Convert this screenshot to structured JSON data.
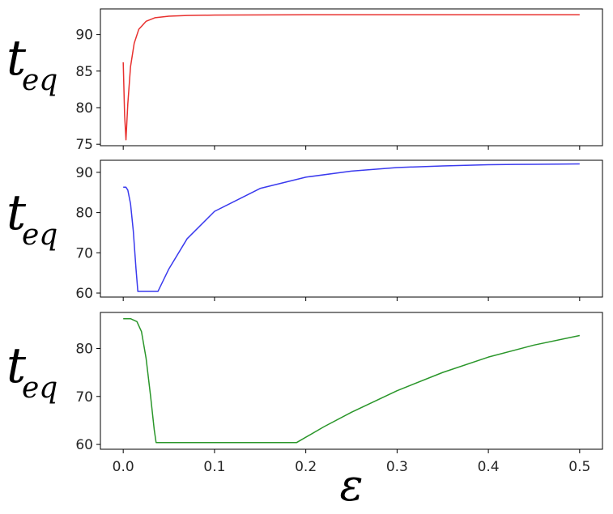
{
  "chart_data": [
    {
      "type": "line",
      "ylabel": {
        "main": "t",
        "sub": "eq"
      },
      "xlabel": "",
      "xlim": [
        -0.025,
        0.525
      ],
      "ylim": [
        74.8,
        93.5
      ],
      "xticks": [
        0.0,
        0.1,
        0.2,
        0.3,
        0.4,
        0.5
      ],
      "xtick_labels_visible": false,
      "yticks": [
        {
          "value": 75,
          "label": "75"
        },
        {
          "value": 80,
          "label": "80"
        },
        {
          "value": 85,
          "label": "85"
        },
        {
          "value": 90,
          "label": "90"
        }
      ],
      "grid": false,
      "series": [
        {
          "color": "#e8312f",
          "x": [
            0.0,
            0.0015,
            0.003,
            0.005,
            0.008,
            0.012,
            0.017,
            0.025,
            0.035,
            0.05,
            0.07,
            0.1,
            0.2,
            0.3,
            0.4,
            0.5
          ],
          "y": [
            86.2,
            79.0,
            75.6,
            80.5,
            85.6,
            88.8,
            90.7,
            91.8,
            92.3,
            92.5,
            92.6,
            92.65,
            92.7,
            92.7,
            92.7,
            92.7
          ]
        }
      ]
    },
    {
      "type": "line",
      "ylabel": {
        "main": "t",
        "sub": "eq"
      },
      "xlabel": "",
      "xlim": [
        -0.025,
        0.525
      ],
      "ylim": [
        59.0,
        93.0
      ],
      "xticks": [
        0.0,
        0.1,
        0.2,
        0.3,
        0.4,
        0.5
      ],
      "xtick_labels_visible": false,
      "yticks": [
        {
          "value": 60,
          "label": "60"
        },
        {
          "value": 70,
          "label": "70"
        },
        {
          "value": 80,
          "label": "80"
        },
        {
          "value": 90,
          "label": "90"
        }
      ],
      "grid": false,
      "series": [
        {
          "color": "#3a3aee",
          "x": [
            0.0,
            0.003,
            0.005,
            0.008,
            0.011,
            0.014,
            0.016,
            0.03,
            0.038,
            0.05,
            0.07,
            0.1,
            0.15,
            0.2,
            0.25,
            0.3,
            0.35,
            0.4,
            0.45,
            0.5
          ],
          "y": [
            86.3,
            86.3,
            85.6,
            82.2,
            75.5,
            66.0,
            60.4,
            60.4,
            60.4,
            66.0,
            73.5,
            80.3,
            86.0,
            88.8,
            90.3,
            91.2,
            91.6,
            91.9,
            92.0,
            92.1
          ]
        }
      ]
    },
    {
      "type": "line",
      "ylabel": {
        "main": "t",
        "sub": "eq"
      },
      "xlabel": "ε",
      "xlim": [
        -0.025,
        0.525
      ],
      "ylim": [
        59.0,
        87.5
      ],
      "xticks": [
        0.0,
        0.1,
        0.2,
        0.3,
        0.4,
        0.5
      ],
      "xtick_labels_visible": true,
      "xtick_labels": [
        "0.0",
        "0.1",
        "0.2",
        "0.3",
        "0.4",
        "0.5"
      ],
      "yticks": [
        {
          "value": 60,
          "label": "60"
        },
        {
          "value": 70,
          "label": "70"
        },
        {
          "value": 80,
          "label": "80"
        }
      ],
      "grid": false,
      "series": [
        {
          "color": "#2a962a",
          "x": [
            0.0,
            0.008,
            0.015,
            0.02,
            0.025,
            0.03,
            0.034,
            0.036,
            0.1,
            0.19,
            0.22,
            0.25,
            0.3,
            0.35,
            0.4,
            0.45,
            0.5
          ],
          "y": [
            86.2,
            86.2,
            85.6,
            83.5,
            78.0,
            70.0,
            63.0,
            60.4,
            60.4,
            60.4,
            63.7,
            66.7,
            71.2,
            75.0,
            78.2,
            80.7,
            82.7
          ]
        }
      ]
    }
  ]
}
